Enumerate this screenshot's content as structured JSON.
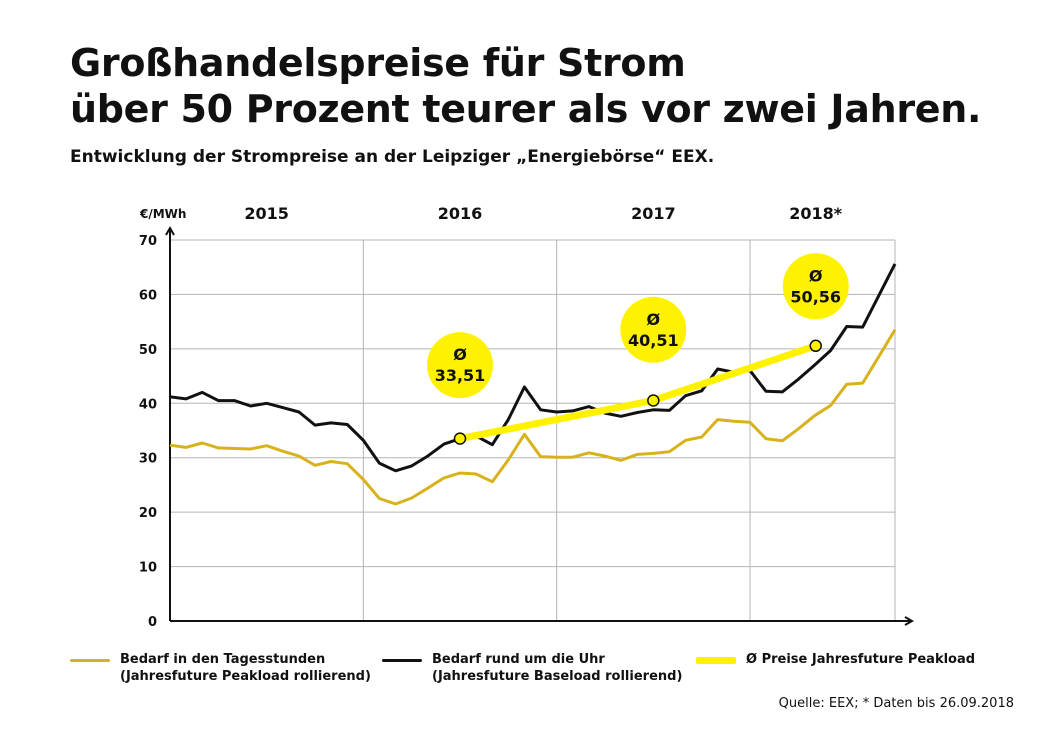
{
  "title": {
    "line1": "Großhandelspreise für Strom",
    "line2": "über 50 Prozent teurer als vor zwei Jahren."
  },
  "subtitle": "Entwicklung der Strompreise an der Leipziger „Energiebörse“ EEX.",
  "colors": {
    "peak": "#d8b21c",
    "base": "#111111",
    "avg": "#fff200",
    "grid": "#b5b5b5"
  },
  "chart_data": {
    "type": "line",
    "title": "Entwicklung der Strompreise an der Leipziger „Energiebörse“ EEX.",
    "ylabel": "€/MWh",
    "xlabel": "",
    "ylim": [
      0,
      70
    ],
    "yticks": [
      0,
      10,
      20,
      30,
      40,
      50,
      60,
      70
    ],
    "grid": true,
    "xlim": [
      2015.0,
      2018.75
    ],
    "year_labels": [
      {
        "label": "2015",
        "x": 2015.5
      },
      {
        "label": "2016",
        "x": 2016.5
      },
      {
        "label": "2017",
        "x": 2017.5
      },
      {
        "label": "2018*",
        "x": 2018.34
      }
    ],
    "year_boundaries": [
      2016.0,
      2017.0,
      2018.0
    ],
    "series": [
      {
        "name": "Bedarf in den Tagesstunden (Jahresfuture Peakload rollierend)",
        "key": "peak",
        "x": [
          2015.0,
          2015.083,
          2015.167,
          2015.25,
          2015.333,
          2015.417,
          2015.5,
          2015.583,
          2015.667,
          2015.75,
          2015.833,
          2015.917,
          2016.0,
          2016.083,
          2016.167,
          2016.25,
          2016.333,
          2016.417,
          2016.5,
          2016.583,
          2016.667,
          2016.75,
          2016.833,
          2016.917,
          2017.0,
          2017.083,
          2017.167,
          2017.25,
          2017.333,
          2017.417,
          2017.5,
          2017.583,
          2017.667,
          2017.75,
          2017.833,
          2017.917,
          2018.0,
          2018.083,
          2018.167,
          2018.25,
          2018.333,
          2018.417,
          2018.5,
          2018.583,
          2018.75
        ],
        "values": [
          32.3,
          31.9,
          32.7,
          31.8,
          31.7,
          31.6,
          32.2,
          31.2,
          30.3,
          28.6,
          29.3,
          28.9,
          26.0,
          22.5,
          21.5,
          22.6,
          24.4,
          26.3,
          27.2,
          27.0,
          25.6,
          29.6,
          34.3,
          30.2,
          30.1,
          30.1,
          30.9,
          30.3,
          29.5,
          30.6,
          30.8,
          31.1,
          33.2,
          33.8,
          37.0,
          36.7,
          36.5,
          33.5,
          33.1,
          35.3,
          37.7,
          39.6,
          43.5,
          43.7,
          53.5
        ]
      },
      {
        "name": "Bedarf rund um die Uhr (Jahresfuture Baseload rollierend)",
        "key": "base",
        "x": [
          2015.0,
          2015.083,
          2015.167,
          2015.25,
          2015.333,
          2015.417,
          2015.5,
          2015.583,
          2015.667,
          2015.75,
          2015.833,
          2015.917,
          2016.0,
          2016.083,
          2016.167,
          2016.25,
          2016.333,
          2016.417,
          2016.5,
          2016.583,
          2016.667,
          2016.75,
          2016.833,
          2016.917,
          2017.0,
          2017.083,
          2017.167,
          2017.25,
          2017.333,
          2017.417,
          2017.5,
          2017.583,
          2017.667,
          2017.75,
          2017.833,
          2017.917,
          2018.0,
          2018.083,
          2018.167,
          2018.25,
          2018.333,
          2018.417,
          2018.5,
          2018.583,
          2018.75
        ],
        "values": [
          41.2,
          40.8,
          42.0,
          40.5,
          40.5,
          39.5,
          40.0,
          39.2,
          38.4,
          36.0,
          36.4,
          36.1,
          33.2,
          29.0,
          27.6,
          28.5,
          30.3,
          32.5,
          33.5,
          34.0,
          32.4,
          37.0,
          43.0,
          38.8,
          38.4,
          38.6,
          39.4,
          38.2,
          37.6,
          38.3,
          38.8,
          38.7,
          41.4,
          42.3,
          46.3,
          45.7,
          46.0,
          42.2,
          42.1,
          44.4,
          47.0,
          49.7,
          54.1,
          54.0,
          65.6
        ]
      },
      {
        "name": "Ø Preise Jahresfuture Peakload",
        "key": "avg",
        "x": [
          2016.5,
          2017.5,
          2018.34
        ],
        "values": [
          33.51,
          40.51,
          50.56
        ]
      }
    ],
    "annotations": [
      {
        "label": "Ø",
        "value": "33,51",
        "x": 2016.5,
        "y": 33.51,
        "bubble_x": 2016.5,
        "bubble_y": 47
      },
      {
        "label": "Ø",
        "value": "40,51",
        "x": 2017.5,
        "y": 40.51,
        "bubble_x": 2017.5,
        "bubble_y": 53.5
      },
      {
        "label": "Ø",
        "value": "50,56",
        "x": 2018.34,
        "y": 50.56,
        "bubble_x": 2018.34,
        "bubble_y": 61.5
      }
    ]
  },
  "legend": [
    {
      "key": "peak",
      "line1": "Bedarf in den Tagesstunden",
      "line2": "(Jahresfuture Peakload rollierend)"
    },
    {
      "key": "base",
      "line1": "Bedarf rund um die Uhr",
      "line2": "(Jahresfuture Baseload rollierend)"
    },
    {
      "key": "avg",
      "line1": "Ø Preise Jahresfuture Peakload",
      "line2": ""
    }
  ],
  "source": "Quelle: EEX;  * Daten bis 26.09.2018"
}
